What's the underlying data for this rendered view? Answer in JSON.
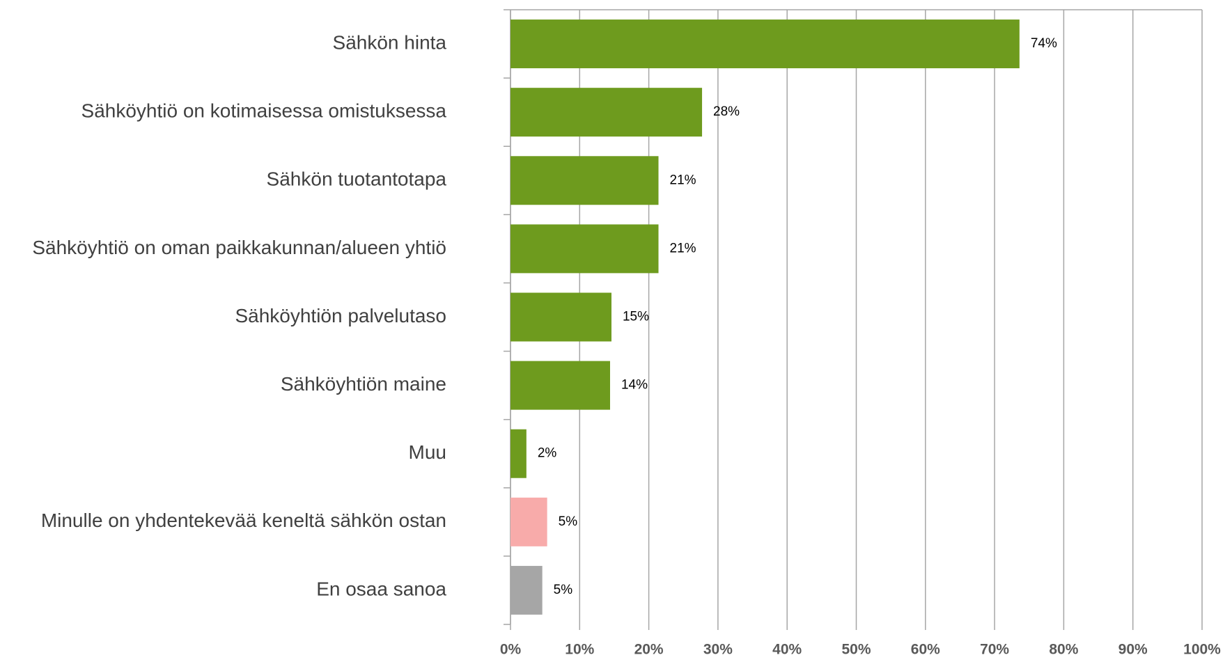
{
  "chart_data": {
    "type": "barh",
    "categories": [
      "Sähkön hinta",
      "Sähköyhtiö on kotimaisessa omistuksessa",
      "Sähkön tuotantotapa",
      "Sähköyhtiö on oman paikkakunnan/alueen yhtiö",
      "Sähköyhtiön palvelutaso",
      "Sähköyhtiön maine",
      "Muu",
      "Minulle on yhdentekevää keneltä sähkön ostan",
      "En osaa sanoa"
    ],
    "values": [
      73.6,
      27.7,
      21.4,
      21.4,
      14.6,
      14.4,
      2.3,
      5.3,
      4.6
    ],
    "value_labels": [
      "74%",
      "28%",
      "21%",
      "21%",
      "15%",
      "14%",
      "2%",
      "5%",
      "5%"
    ],
    "colors": [
      "#6e9b1e",
      "#6e9b1e",
      "#6e9b1e",
      "#6e9b1e",
      "#6e9b1e",
      "#6e9b1e",
      "#6e9b1e",
      "#f8abaa",
      "#a6a6a6"
    ],
    "xlim": [
      0,
      100
    ],
    "xticks": [
      {
        "value": 0,
        "label": "0%"
      },
      {
        "value": 10,
        "label": "10%"
      },
      {
        "value": 20,
        "label": "20%"
      },
      {
        "value": 30,
        "label": "30%"
      },
      {
        "value": 40,
        "label": "40%"
      },
      {
        "value": 50,
        "label": "50%"
      },
      {
        "value": 60,
        "label": "60%"
      },
      {
        "value": 70,
        "label": "70%"
      },
      {
        "value": 80,
        "label": "80%"
      },
      {
        "value": 90,
        "label": "90%"
      },
      {
        "value": 100,
        "label": "100%"
      }
    ],
    "grid": true
  }
}
